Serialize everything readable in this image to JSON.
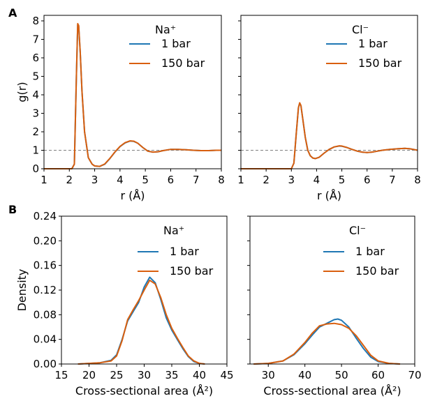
{
  "figure": {
    "panel_labels": [
      "A",
      "B"
    ]
  },
  "colors": {
    "series_1bar": "#1f77b4",
    "series_150bar": "#d95f0e",
    "reference_line": "#808080"
  },
  "chart_data": [
    {
      "id": "A-left",
      "type": "line",
      "panel_label": "A",
      "ion_label": "Na⁺",
      "xlabel": "r (Å)",
      "ylabel": "g(r)",
      "xlim": [
        1,
        8
      ],
      "ylim": [
        0,
        8.3
      ],
      "xticks": [
        1,
        2,
        3,
        4,
        5,
        6,
        7,
        8
      ],
      "yticks": [
        0,
        1,
        2,
        3,
        4,
        5,
        6,
        7,
        8
      ],
      "ytick_labels": [
        "0",
        "1",
        "2",
        "3",
        "4",
        "5",
        "6",
        "7",
        "8"
      ],
      "reference_line_y": 1,
      "legend": [
        "1 bar",
        "150 bar"
      ],
      "series": [
        {
          "name": "1 bar",
          "x": [
            1,
            2.1,
            2.2,
            2.28,
            2.33,
            2.37,
            2.43,
            2.5,
            2.6,
            2.75,
            2.9,
            3.0,
            3.2,
            3.4,
            3.6,
            3.8,
            4.0,
            4.2,
            4.4,
            4.55,
            4.7,
            4.9,
            5.1,
            5.3,
            5.5,
            5.7,
            6.0,
            6.3,
            6.6,
            6.9,
            7.2,
            7.5,
            7.8,
            8.0
          ],
          "y": [
            0,
            0,
            0.25,
            5.0,
            7.8,
            7.7,
            6.3,
            4.2,
            2.0,
            0.6,
            0.25,
            0.15,
            0.13,
            0.25,
            0.55,
            0.9,
            1.2,
            1.4,
            1.5,
            1.48,
            1.38,
            1.15,
            0.95,
            0.9,
            0.92,
            0.98,
            1.05,
            1.05,
            1.03,
            1.0,
            0.98,
            0.98,
            1.0,
            1.0
          ]
        },
        {
          "name": "150 bar",
          "x": [
            1,
            2.1,
            2.2,
            2.28,
            2.33,
            2.37,
            2.43,
            2.5,
            2.6,
            2.75,
            2.9,
            3.0,
            3.2,
            3.4,
            3.6,
            3.8,
            4.0,
            4.2,
            4.4,
            4.55,
            4.7,
            4.9,
            5.1,
            5.3,
            5.5,
            5.7,
            6.0,
            6.3,
            6.6,
            6.9,
            7.2,
            7.5,
            7.8,
            8.0
          ],
          "y": [
            0,
            0,
            0.25,
            5.0,
            7.85,
            7.75,
            6.3,
            4.2,
            2.0,
            0.6,
            0.25,
            0.15,
            0.13,
            0.26,
            0.56,
            0.91,
            1.21,
            1.41,
            1.51,
            1.49,
            1.38,
            1.15,
            0.95,
            0.9,
            0.92,
            0.98,
            1.05,
            1.05,
            1.03,
            1.0,
            0.98,
            0.98,
            1.0,
            1.0
          ]
        }
      ]
    },
    {
      "id": "A-right",
      "type": "line",
      "ion_label": "Cl⁻",
      "xlabel": "r (Å)",
      "ylabel": "",
      "xlim": [
        1,
        8
      ],
      "ylim": [
        0,
        8.3
      ],
      "xticks": [
        1,
        2,
        3,
        4,
        5,
        6,
        7,
        8
      ],
      "yticks": [
        0,
        1,
        2,
        3,
        4,
        5,
        6,
        7,
        8
      ],
      "ytick_labels": [],
      "reference_line_y": 1,
      "legend": [
        "1 bar",
        "150 bar"
      ],
      "series": [
        {
          "name": "1 bar",
          "x": [
            1,
            3.0,
            3.1,
            3.2,
            3.28,
            3.33,
            3.38,
            3.45,
            3.55,
            3.65,
            3.75,
            3.85,
            3.95,
            4.1,
            4.3,
            4.5,
            4.7,
            4.9,
            5.0,
            5.2,
            5.4,
            5.6,
            5.8,
            6.0,
            6.2,
            6.4,
            6.6,
            6.9,
            7.2,
            7.5,
            7.7,
            7.9,
            8.0
          ],
          "y": [
            0,
            0,
            0.3,
            2.0,
            3.3,
            3.55,
            3.4,
            2.7,
            1.7,
            1.0,
            0.7,
            0.58,
            0.55,
            0.62,
            0.85,
            1.05,
            1.18,
            1.23,
            1.22,
            1.15,
            1.05,
            0.96,
            0.9,
            0.88,
            0.9,
            0.95,
            1.0,
            1.05,
            1.08,
            1.1,
            1.08,
            1.03,
            1.0
          ]
        },
        {
          "name": "150 bar",
          "x": [
            1,
            3.0,
            3.1,
            3.2,
            3.28,
            3.33,
            3.38,
            3.45,
            3.55,
            3.65,
            3.75,
            3.85,
            3.95,
            4.1,
            4.3,
            4.5,
            4.7,
            4.9,
            5.0,
            5.2,
            5.4,
            5.6,
            5.8,
            6.0,
            6.2,
            6.4,
            6.6,
            6.9,
            7.2,
            7.5,
            7.7,
            7.9,
            8.0
          ],
          "y": [
            0,
            0,
            0.3,
            2.0,
            3.3,
            3.57,
            3.42,
            2.7,
            1.7,
            1.0,
            0.7,
            0.58,
            0.55,
            0.62,
            0.85,
            1.05,
            1.18,
            1.24,
            1.23,
            1.15,
            1.05,
            0.96,
            0.9,
            0.88,
            0.9,
            0.95,
            1.0,
            1.05,
            1.08,
            1.1,
            1.08,
            1.03,
            1.0
          ]
        }
      ]
    },
    {
      "id": "B-left",
      "type": "line",
      "panel_label": "B",
      "ion_label": "Na⁺",
      "xlabel": "Cross-sectional area (Å²)",
      "ylabel": "Density",
      "xlim": [
        15,
        45
      ],
      "ylim": [
        0,
        0.24
      ],
      "xticks": [
        15,
        20,
        25,
        30,
        35,
        40,
        45
      ],
      "yticks": [
        0,
        0.04,
        0.08,
        0.12,
        0.16,
        0.2,
        0.24
      ],
      "ytick_labels": [
        "0.00",
        "0.04",
        "0.08",
        "0.12",
        "0.16",
        "0.20",
        "0.24"
      ],
      "legend": [
        "1 bar",
        "150 bar"
      ],
      "series": [
        {
          "name": "1 bar",
          "x": [
            18,
            20,
            22,
            24,
            25,
            26,
            27,
            28,
            29,
            30,
            31,
            32,
            33,
            34,
            35,
            36,
            37,
            38,
            39,
            40,
            41
          ],
          "y": [
            0,
            0.001,
            0.002,
            0.006,
            0.015,
            0.04,
            0.07,
            0.085,
            0.1,
            0.125,
            0.141,
            0.132,
            0.105,
            0.075,
            0.055,
            0.04,
            0.025,
            0.012,
            0.004,
            0.001,
            0
          ]
        },
        {
          "name": "150 bar",
          "x": [
            18,
            20,
            22,
            24,
            25,
            26,
            27,
            28,
            29,
            30,
            31,
            32,
            33,
            34,
            35,
            36,
            37,
            38,
            39,
            40,
            41
          ],
          "y": [
            0,
            0.001,
            0.002,
            0.005,
            0.013,
            0.038,
            0.072,
            0.088,
            0.103,
            0.12,
            0.136,
            0.13,
            0.108,
            0.08,
            0.058,
            0.042,
            0.027,
            0.013,
            0.005,
            0.001,
            0
          ]
        }
      ]
    },
    {
      "id": "B-right",
      "type": "line",
      "ion_label": "Cl⁻",
      "xlabel": "Cross-sectional area (Å²)",
      "ylabel": "",
      "xlim": [
        25,
        70
      ],
      "ylim": [
        0,
        0.24
      ],
      "xticks": [
        30,
        40,
        50,
        60,
        70
      ],
      "yticks": [
        0,
        0.04,
        0.08,
        0.12,
        0.16,
        0.2,
        0.24
      ],
      "ytick_labels": [],
      "legend": [
        "1 bar",
        "150 bar"
      ],
      "series": [
        {
          "name": "1 bar",
          "x": [
            26,
            30,
            34,
            37,
            40,
            42,
            44,
            46,
            48,
            49,
            50,
            52,
            54,
            56,
            58,
            60,
            63,
            66
          ],
          "y": [
            0,
            0.001,
            0.005,
            0.015,
            0.033,
            0.047,
            0.06,
            0.066,
            0.072,
            0.073,
            0.071,
            0.06,
            0.042,
            0.025,
            0.011,
            0.004,
            0.001,
            0
          ]
        },
        {
          "name": "150 bar",
          "x": [
            26,
            30,
            34,
            37,
            40,
            42,
            44,
            46,
            48,
            49,
            50,
            52,
            54,
            56,
            58,
            60,
            63,
            66
          ],
          "y": [
            0,
            0.001,
            0.005,
            0.016,
            0.035,
            0.05,
            0.062,
            0.065,
            0.066,
            0.065,
            0.064,
            0.058,
            0.046,
            0.03,
            0.014,
            0.005,
            0.001,
            0
          ]
        }
      ]
    }
  ]
}
